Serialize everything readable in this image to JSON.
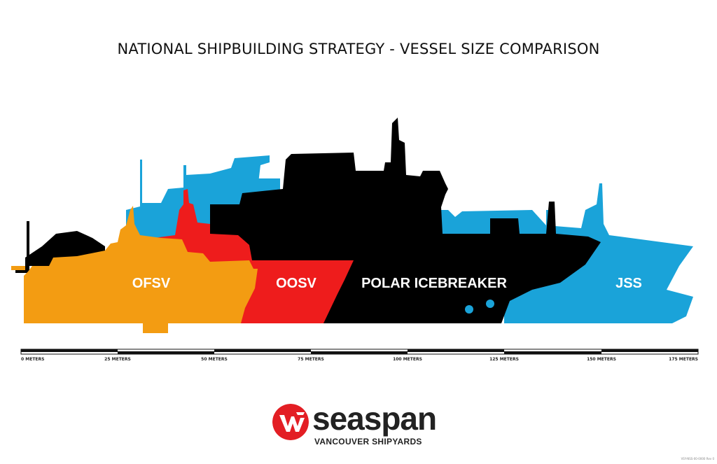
{
  "title": "NATIONAL SHIPBUILDING STRATEGY - VESSEL SIZE COMPARISON",
  "vessels": [
    {
      "label": "JSS",
      "color": "#1aa3d9"
    },
    {
      "label": "POLAR ICEBREAKER",
      "color": "#000000"
    },
    {
      "label": "OOSV",
      "color": "#ee1c1c"
    },
    {
      "label": "OFSV",
      "color": "#f39c12"
    }
  ],
  "scale": {
    "unit": "METERS",
    "ticks": [
      "0 METERS",
      "25 METERS",
      "50 METERS",
      "75 METERS",
      "100 METERS",
      "125 METERS",
      "150 METERS",
      "175 METERS"
    ]
  },
  "logo": {
    "brand": "seaspan",
    "subtitle": "VANCOUVER SHIPYARDS",
    "mark_color": "#e31e24"
  },
  "doc_ref": "VSY-NSS-00-0000 Rev 0"
}
